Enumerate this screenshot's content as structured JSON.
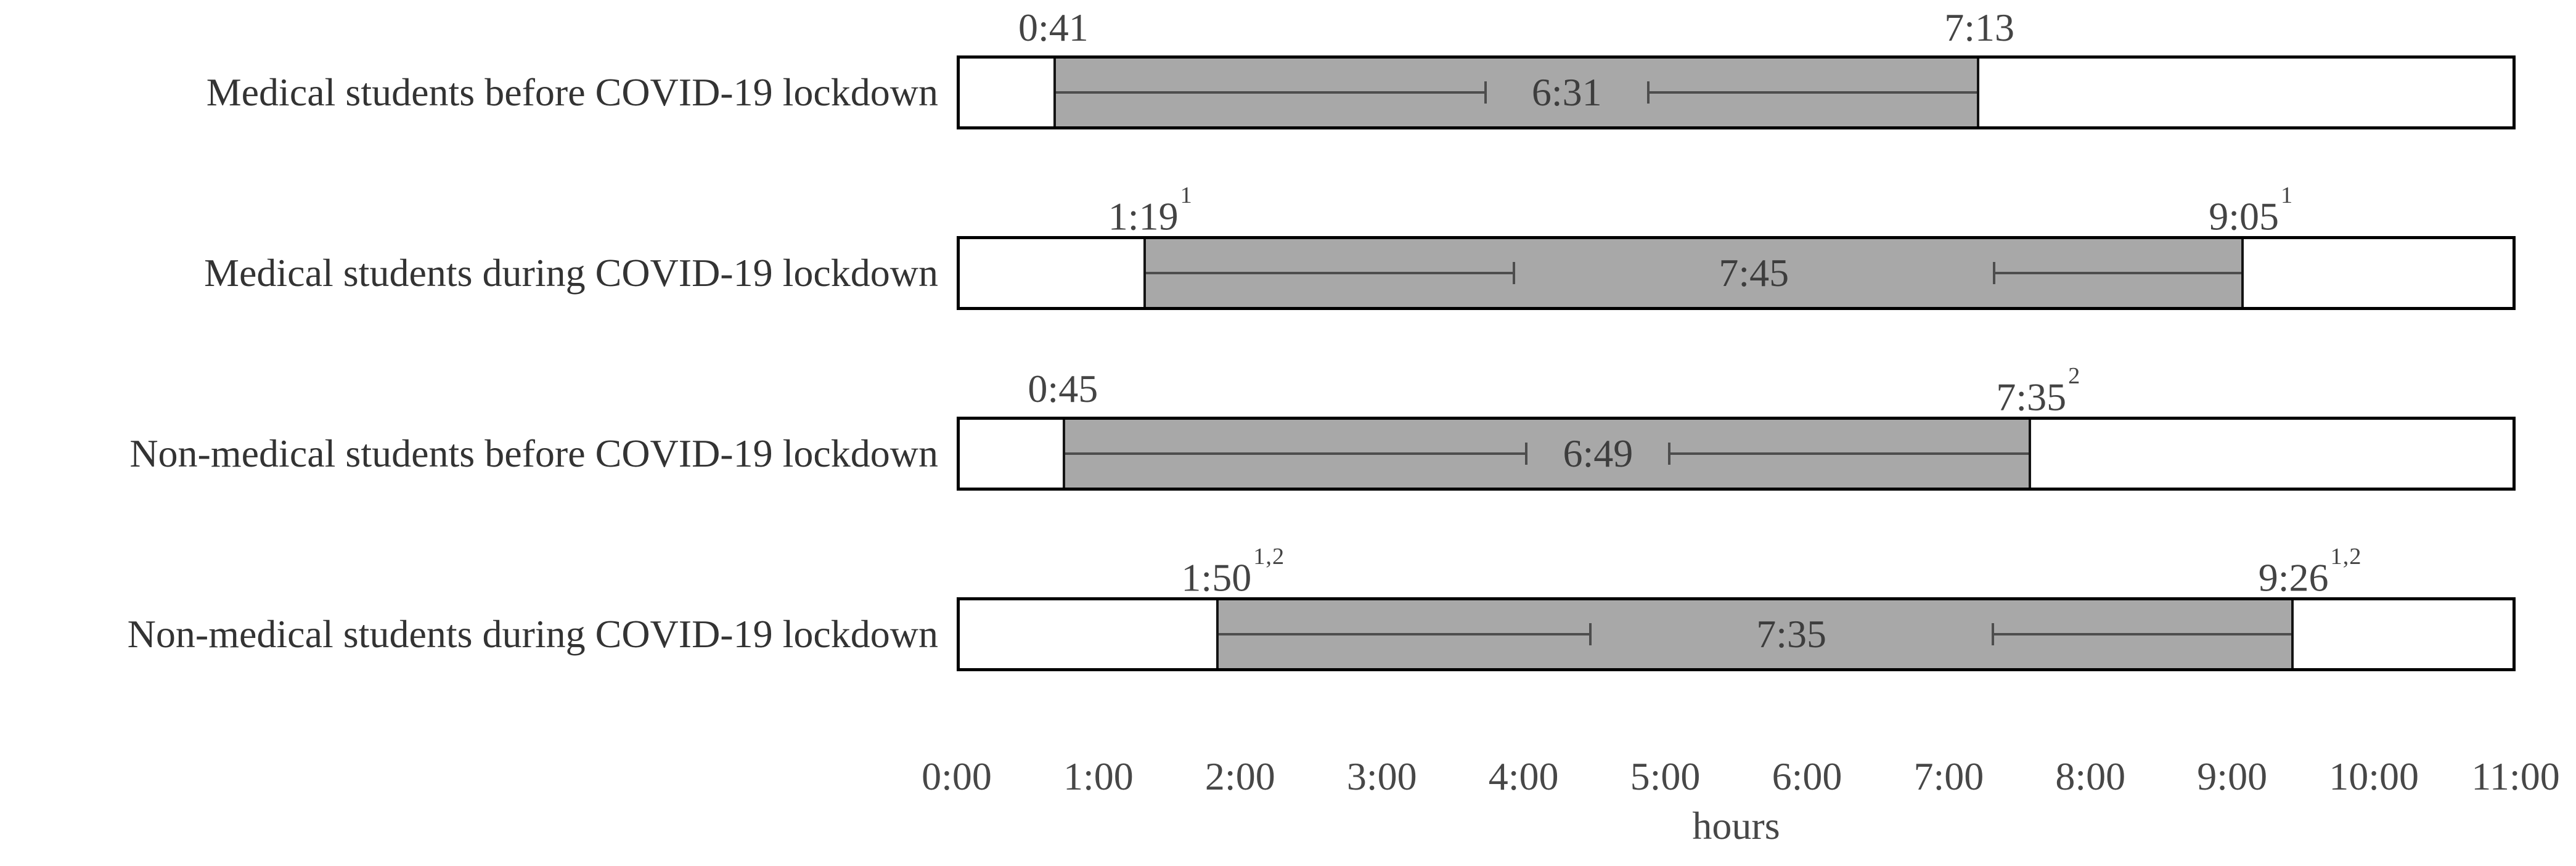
{
  "chart_data": {
    "type": "bar",
    "variant": "horizontal-time-range-bars-with-whiskers",
    "title": "",
    "xlabel": "hours",
    "axis_hours_range": [
      0,
      11
    ],
    "x_ticks": [
      "0:00",
      "1:00",
      "2:00",
      "3:00",
      "4:00",
      "5:00",
      "6:00",
      "7:00",
      "8:00",
      "9:00",
      "10:00",
      "11:00"
    ],
    "grid": false,
    "legend": false,
    "rows": [
      {
        "label": "Medical students before COVID-19 lockdown",
        "start": {
          "text": "0:41",
          "sup": "",
          "hours": 0.683
        },
        "end": {
          "text": "7:13",
          "sup": "",
          "hours": 7.217
        },
        "duration": {
          "text": "6:31"
        },
        "whisker_caps_hours": [
          3.73,
          4.88
        ]
      },
      {
        "label": "Medical students during COVID-19 lockdown",
        "start": {
          "text": "1:19",
          "sup": "1",
          "hours": 1.317
        },
        "end": {
          "text": "9:05",
          "sup": "1",
          "hours": 9.083
        },
        "duration": {
          "text": "7:45"
        },
        "whisker_caps_hours": [
          3.93,
          7.32
        ]
      },
      {
        "label": "Non-medical students before COVID-19 lockdown",
        "start": {
          "text": "0:45",
          "sup": "",
          "hours": 0.75
        },
        "end": {
          "text": "7:35",
          "sup": "2",
          "hours": 7.583
        },
        "duration": {
          "text": "6:49"
        },
        "whisker_caps_hours": [
          4.02,
          5.03
        ]
      },
      {
        "label": "Non-medical students during COVID-19 lockdown",
        "start": {
          "text": "1:50",
          "sup": "1,2",
          "hours": 1.833
        },
        "end": {
          "text": "9:26",
          "sup": "1,2",
          "hours": 9.433
        },
        "duration": {
          "text": "7:35"
        },
        "whisker_caps_hours": [
          4.47,
          7.31
        ]
      }
    ],
    "colors": {
      "background": "#ffffff",
      "bar_fill": "#a8a8a8",
      "bar_edge": "#141414",
      "track_border": "#000000",
      "whisker": "#4d4d4d",
      "duration_text": "#3d3d3d",
      "time_text": "#444444",
      "category_text": "#333333",
      "tick_text": "#474747"
    }
  }
}
